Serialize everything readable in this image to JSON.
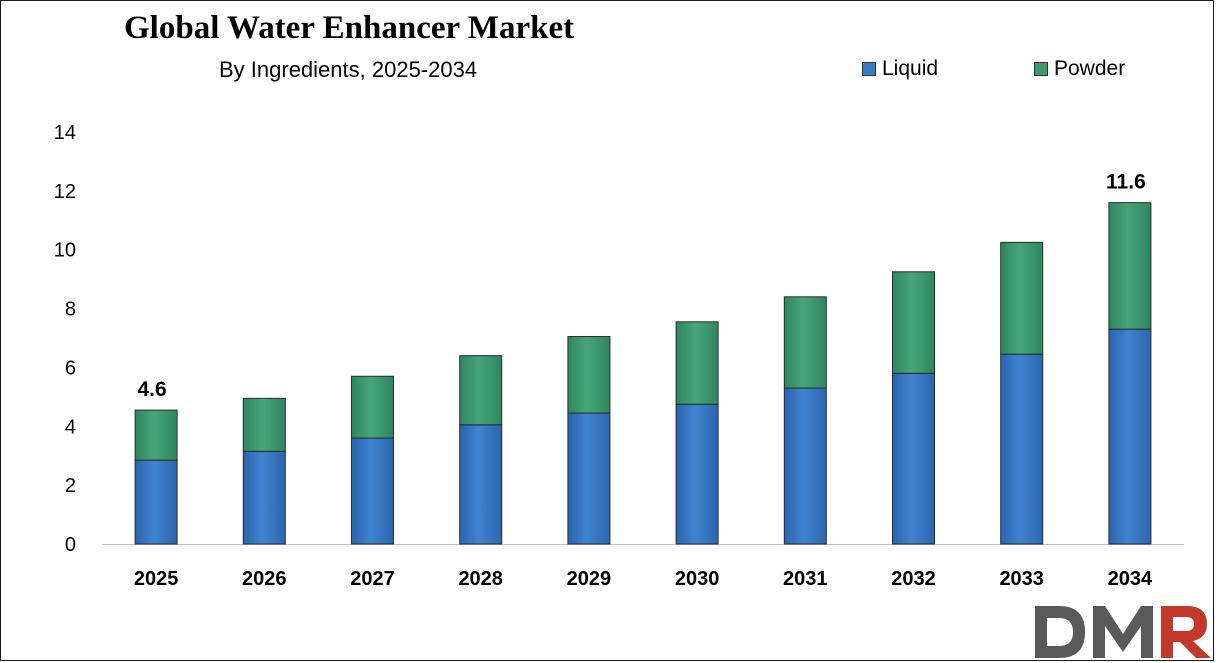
{
  "chart_data": {
    "type": "bar",
    "stacked": true,
    "title": "Global Water Enhancer Market",
    "subtitle": "By Ingredients, 2025-2034",
    "categories": [
      "2025",
      "2026",
      "2027",
      "2028",
      "2029",
      "2030",
      "2031",
      "2032",
      "2033",
      "2034"
    ],
    "series": [
      {
        "name": "Liquid",
        "color": "#3a7bc8",
        "values": [
          2.85,
          3.15,
          3.6,
          4.05,
          4.45,
          4.75,
          5.3,
          5.8,
          6.45,
          7.3
        ]
      },
      {
        "name": "Powder",
        "color": "#3f9a70",
        "values": [
          1.7,
          1.8,
          2.1,
          2.35,
          2.6,
          2.8,
          3.1,
          3.45,
          3.8,
          4.3
        ]
      }
    ],
    "data_labels": [
      {
        "category": "2025",
        "text": "4.6"
      },
      {
        "category": "2034",
        "text": "11.6"
      }
    ],
    "y_ticks": [
      "0",
      "2",
      "4",
      "6",
      "8",
      "10",
      "12",
      "14"
    ],
    "ylim": [
      0,
      14
    ],
    "xlabel": "",
    "ylabel": "",
    "grid": false,
    "legend_position": "top-right"
  },
  "logo": {
    "text": "DMR",
    "color": "#555555",
    "accent": "#c0392b"
  }
}
